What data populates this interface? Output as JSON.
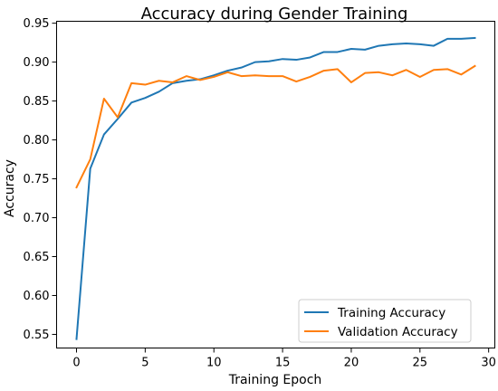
{
  "chart_data": {
    "type": "line",
    "title": "Accuracy during Gender Training",
    "xlabel": "Training Epoch",
    "ylabel": "Accuracy",
    "xlim": [
      -1.45,
      30.45
    ],
    "ylim": [
      0.5325,
      0.9525
    ],
    "xticks": [
      0,
      5,
      10,
      15,
      20,
      25,
      30
    ],
    "yticks": [
      0.55,
      0.6,
      0.65,
      0.7,
      0.75,
      0.8,
      0.85,
      0.9,
      0.95
    ],
    "ytick_labels": [
      "0.55",
      "0.60",
      "0.65",
      "0.70",
      "0.75",
      "0.80",
      "0.85",
      "0.90",
      "0.95"
    ],
    "grid": false,
    "legend_position": "lower-right",
    "x": [
      0,
      1,
      2,
      3,
      4,
      5,
      6,
      7,
      8,
      9,
      10,
      11,
      12,
      13,
      14,
      15,
      16,
      17,
      18,
      19,
      20,
      21,
      22,
      23,
      24,
      25,
      26,
      27,
      28,
      29
    ],
    "series": [
      {
        "name": "Training Accuracy",
        "color": "#1f77b4",
        "values": [
          0.544,
          0.763,
          0.807,
          0.827,
          0.848,
          0.854,
          0.862,
          0.873,
          0.876,
          0.878,
          0.883,
          0.889,
          0.893,
          0.9,
          0.901,
          0.904,
          0.903,
          0.906,
          0.913,
          0.913,
          0.917,
          0.916,
          0.921,
          0.923,
          0.924,
          0.923,
          0.921,
          0.93,
          0.93,
          0.931
        ]
      },
      {
        "name": "Validation Accuracy",
        "color": "#ff7f0e",
        "values": [
          0.739,
          0.775,
          0.853,
          0.829,
          0.873,
          0.871,
          0.876,
          0.874,
          0.882,
          0.877,
          0.881,
          0.887,
          0.882,
          0.883,
          0.882,
          0.882,
          0.875,
          0.881,
          0.889,
          0.891,
          0.874,
          0.886,
          0.887,
          0.883,
          0.89,
          0.881,
          0.89,
          0.891,
          0.884,
          0.895
        ]
      }
    ]
  }
}
